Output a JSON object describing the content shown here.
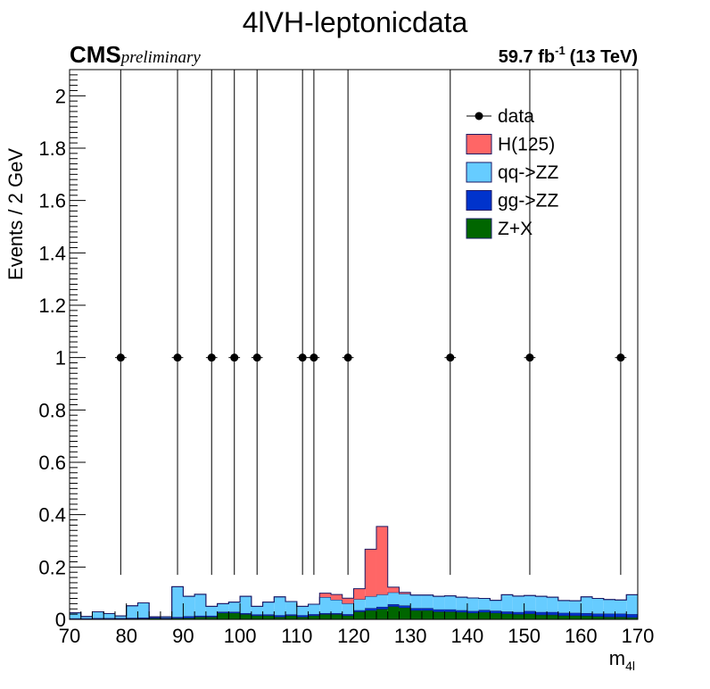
{
  "chart_data": {
    "type": "bar",
    "title": "4lVH-leptonicdata",
    "experiment": "CMS",
    "experiment_tag": "preliminary",
    "luminosity": "59.7 fb",
    "luminosity_exp": "-1",
    "energy": "(13 TeV)",
    "xlabel": "m",
    "xlabel_sub": "4l",
    "ylabel": "Events / 2 GeV",
    "xlim": [
      70,
      170
    ],
    "ylim": [
      0,
      2.1
    ],
    "x_ticks": [
      70,
      80,
      90,
      100,
      110,
      120,
      130,
      140,
      150,
      160,
      170
    ],
    "x_tick_labels": [
      "70",
      "80",
      "90",
      "100",
      "110",
      "120",
      "130",
      "140",
      "150",
      "160",
      "170"
    ],
    "y_ticks": [
      0,
      0.2,
      0.4,
      0.6,
      0.8,
      1,
      1.2,
      1.4,
      1.6,
      1.8,
      2
    ],
    "y_tick_labels": [
      "0",
      "0.2",
      "0.4",
      "0.6",
      "0.8",
      "1",
      "1.2",
      "1.4",
      "1.6",
      "1.8",
      "2"
    ],
    "bin_edges_start": 70,
    "bin_width": 2,
    "stack": [
      {
        "name": "Z+X",
        "color": "#006600",
        "values": [
          0.002,
          0.002,
          0.003,
          0.003,
          0.003,
          0.004,
          0.004,
          0.005,
          0.004,
          0.005,
          0.006,
          0.01,
          0.01,
          0.025,
          0.025,
          0.02,
          0.015,
          0.015,
          0.01,
          0.015,
          0.01,
          0.015,
          0.02,
          0.02,
          0.015,
          0.03,
          0.035,
          0.04,
          0.05,
          0.045,
          0.035,
          0.035,
          0.03,
          0.03,
          0.028,
          0.025,
          0.028,
          0.025,
          0.022,
          0.02,
          0.022,
          0.018,
          0.018,
          0.015,
          0.015,
          0.014,
          0.012,
          0.01,
          0.01,
          0.008
        ]
      },
      {
        "name": "gg->ZZ",
        "color": "#0033cc",
        "values": [
          0.002,
          0.002,
          0.002,
          0.002,
          0.002,
          0.002,
          0.003,
          0.003,
          0.002,
          0.004,
          0.006,
          0.004,
          0.004,
          0.004,
          0.004,
          0.004,
          0.004,
          0.004,
          0.006,
          0.004,
          0.006,
          0.005,
          0.004,
          0.004,
          0.005,
          0.005,
          0.008,
          0.008,
          0.008,
          0.008,
          0.008,
          0.008,
          0.008,
          0.008,
          0.007,
          0.007,
          0.008,
          0.008,
          0.008,
          0.008,
          0.01,
          0.01,
          0.01,
          0.01,
          0.01,
          0.01,
          0.01,
          0.012,
          0.012,
          0.012
        ]
      },
      {
        "name": "qq->ZZ",
        "color": "#66ccff",
        "values": [
          0.021,
          0.007,
          0.024,
          0.017,
          0.008,
          0.046,
          0.056,
          0.002,
          0.004,
          0.116,
          0.076,
          0.082,
          0.036,
          0.031,
          0.037,
          0.064,
          0.031,
          0.047,
          0.07,
          0.049,
          0.034,
          0.038,
          0.061,
          0.051,
          0.041,
          0.042,
          0.045,
          0.047,
          0.045,
          0.045,
          0.05,
          0.05,
          0.05,
          0.052,
          0.05,
          0.05,
          0.044,
          0.04,
          0.064,
          0.061,
          0.059,
          0.06,
          0.057,
          0.047,
          0.046,
          0.062,
          0.058,
          0.054,
          0.052,
          0.074
        ]
      },
      {
        "name": "H(125)",
        "color": "#ff6666",
        "values": [
          0,
          0,
          0,
          0,
          0,
          0,
          0,
          0,
          0,
          0,
          0,
          0,
          0,
          0,
          0,
          0,
          0,
          0,
          0,
          0,
          0,
          0,
          0.015,
          0.02,
          0.02,
          0.04,
          0.18,
          0.26,
          0.02,
          0.005,
          0,
          0,
          0,
          0,
          0,
          0,
          0,
          0,
          0,
          0,
          0,
          0,
          0,
          0,
          0,
          0,
          0,
          0,
          0,
          0
        ]
      }
    ],
    "data_series": {
      "name": "data",
      "x": [
        79,
        89,
        95,
        99,
        103,
        111,
        113,
        119,
        137,
        151,
        167
      ],
      "y": [
        1,
        1,
        1,
        1,
        1,
        1,
        1,
        1,
        1,
        1,
        1
      ],
      "yerr_low": 0.83,
      "yerr_high": 2.3
    },
    "legend": {
      "placement": "top-right",
      "entries": [
        {
          "label": "data",
          "kind": "marker"
        },
        {
          "label": "H(125)",
          "color": "#ff6666",
          "kind": "box"
        },
        {
          "label": "qq->ZZ",
          "color": "#66ccff",
          "kind": "box"
        },
        {
          "label": "gg->ZZ",
          "color": "#0033cc",
          "kind": "box"
        },
        {
          "label": "Z+X",
          "color": "#006600",
          "kind": "box"
        }
      ]
    }
  }
}
